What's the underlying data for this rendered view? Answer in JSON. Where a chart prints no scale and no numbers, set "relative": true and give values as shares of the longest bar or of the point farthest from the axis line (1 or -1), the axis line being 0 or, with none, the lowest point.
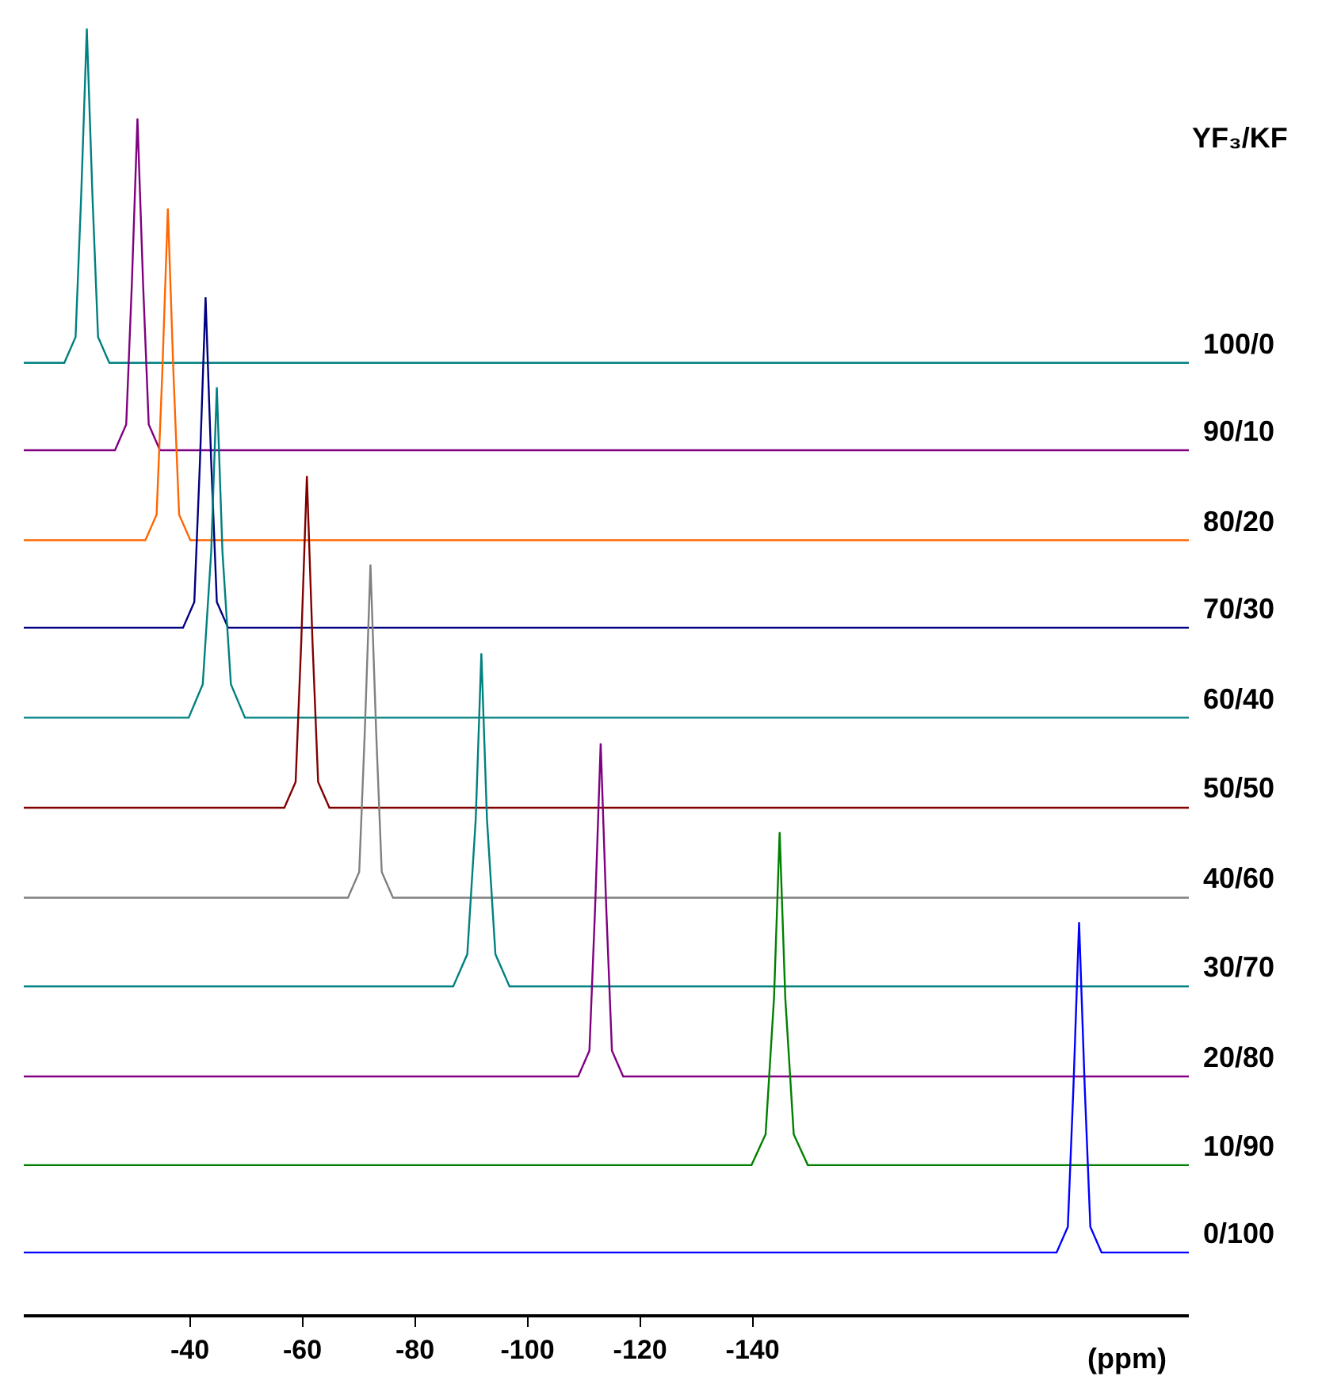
{
  "chart_data": {
    "type": "line",
    "relative": true,
    "xlabel": "(ppm)",
    "annotations": [
      "YF₃/KF"
    ],
    "xlim": [
      -10.5,
      -217.5
    ],
    "xticks": [
      -40,
      -60,
      -80,
      -100,
      -120,
      -140
    ],
    "legend": false,
    "marker": "none",
    "line_style": "solid",
    "series": [
      {
        "name": "100/0",
        "color": "#008080",
        "x": [
          -10.5,
          -17.7,
          -19.7,
          -20.7,
          -21.7,
          -22.7,
          -23.7,
          -25.7,
          -217.5
        ],
        "values": [
          0.74,
          0.74,
          0.76,
          0.87,
          1.0,
          0.87,
          0.76,
          0.74,
          0.74
        ]
      },
      {
        "name": "90/10",
        "color": "#800080",
        "x": [
          -10.5,
          -26.7,
          -28.7,
          -29.7,
          -30.7,
          -31.7,
          -32.7,
          -34.7,
          -217.5
        ],
        "values": [
          0.672,
          0.672,
          0.692,
          0.801,
          0.93,
          0.801,
          0.692,
          0.672,
          0.672
        ]
      },
      {
        "name": "80/20",
        "color": "#ff6600",
        "x": [
          -10.5,
          -32.1,
          -34.1,
          -35.1,
          -36.1,
          -37.1,
          -38.1,
          -40.1,
          -217.5
        ],
        "values": [
          0.602,
          0.602,
          0.622,
          0.731,
          0.86,
          0.731,
          0.622,
          0.602,
          0.602
        ]
      },
      {
        "name": "70/30",
        "color": "#000080",
        "x": [
          -10.5,
          -38.8,
          -40.8,
          -41.8,
          -42.8,
          -43.8,
          -44.8,
          -46.8,
          -217.5
        ],
        "values": [
          0.534,
          0.534,
          0.554,
          0.663,
          0.791,
          0.663,
          0.554,
          0.534,
          0.534
        ]
      },
      {
        "name": "60/40",
        "color": "#008080",
        "x": [
          -10.5,
          -39.8,
          -42.3,
          -43.8,
          -44.8,
          -45.8,
          -47.3,
          -49.8,
          -217.5
        ],
        "values": [
          0.464,
          0.464,
          0.49,
          0.593,
          0.721,
          0.593,
          0.49,
          0.464,
          0.464
        ]
      },
      {
        "name": "50/50",
        "color": "#800000",
        "x": [
          -10.5,
          -56.8,
          -58.8,
          -59.8,
          -60.8,
          -61.8,
          -62.8,
          -64.8,
          -217.5
        ],
        "values": [
          0.394,
          0.394,
          0.414,
          0.523,
          0.652,
          0.523,
          0.414,
          0.394,
          0.394
        ]
      },
      {
        "name": "40/60",
        "color": "#808080",
        "x": [
          -10.5,
          -68.1,
          -70.1,
          -71.1,
          -72.1,
          -73.1,
          -74.1,
          -76.1,
          -217.5
        ],
        "values": [
          0.324,
          0.324,
          0.344,
          0.454,
          0.583,
          0.454,
          0.344,
          0.324,
          0.324
        ]
      },
      {
        "name": "30/70",
        "color": "#008080",
        "x": [
          -10.5,
          -86.8,
          -89.3,
          -90.8,
          -91.8,
          -92.8,
          -94.3,
          -96.8,
          -217.5
        ],
        "values": [
          0.255,
          0.255,
          0.28,
          0.385,
          0.514,
          0.385,
          0.28,
          0.255,
          0.255
        ]
      },
      {
        "name": "20/80",
        "color": "#800080",
        "x": [
          -10.5,
          -109,
          -111,
          -112,
          -113,
          -114,
          -115,
          -117,
          -217.5
        ],
        "values": [
          0.185,
          0.185,
          0.205,
          0.315,
          0.444,
          0.315,
          0.205,
          0.185,
          0.185
        ]
      },
      {
        "name": "10/90",
        "color": "#008000",
        "x": [
          -10.5,
          -139.8,
          -142.3,
          -143.8,
          -144.8,
          -145.8,
          -147.3,
          -149.8,
          -217.5
        ],
        "values": [
          0.116,
          0.116,
          0.14,
          0.246,
          0.375,
          0.246,
          0.14,
          0.116,
          0.116
        ]
      },
      {
        "name": "0/100",
        "color": "#0000ff",
        "x": [
          -10.5,
          -194,
          -196,
          -197,
          -198,
          -199,
          -200,
          -202,
          -217.5
        ],
        "values": [
          0.048,
          0.048,
          0.068,
          0.177,
          0.305,
          0.177,
          0.068,
          0.048,
          0.048
        ]
      }
    ]
  }
}
